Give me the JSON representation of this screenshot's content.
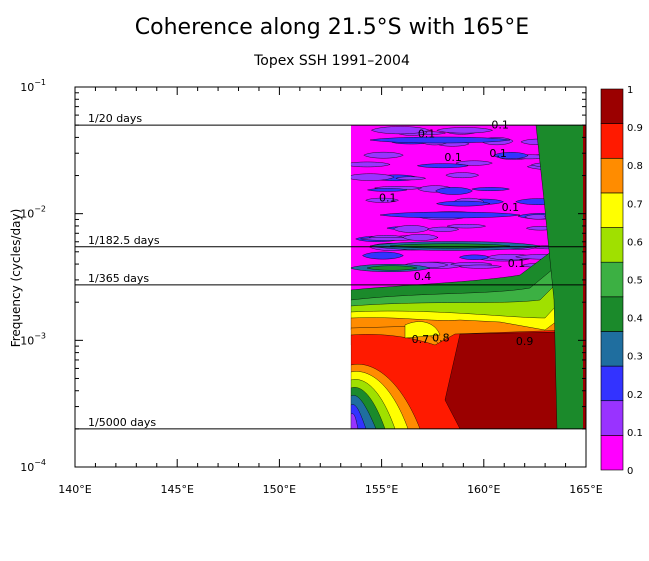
{
  "chart_data": {
    "type": "heatmap",
    "title": "Coherence along 21.5°S with 165°E",
    "subtitle": "Topex SSH 1991–2004",
    "ylabel": "Frequency (cycles/day)",
    "xlabel": "",
    "x_ticks": [
      "140°E",
      "145°E",
      "150°E",
      "155°E",
      "160°E",
      "165°E"
    ],
    "x_tick_values": [
      140,
      145,
      150,
      155,
      160,
      165
    ],
    "xlim": [
      140,
      165
    ],
    "y_scale": "log",
    "ylim": [
      0.0001,
      0.1
    ],
    "y_ticks": [
      {
        "base": "10",
        "exp": "−1",
        "value": 0.1
      },
      {
        "base": "10",
        "exp": "−2",
        "value": 0.01
      },
      {
        "base": "10",
        "exp": "−3",
        "value": 0.001
      },
      {
        "base": "10",
        "exp": "−4",
        "value": 0.0001
      }
    ],
    "reference_lines": [
      {
        "label": "1/20 days",
        "value": 0.05
      },
      {
        "label": "1/182.5 days",
        "value": 0.005479
      },
      {
        "label": "1/365 days",
        "value": 0.00274
      },
      {
        "label": "1/5000 days",
        "value": 0.0002
      }
    ],
    "data_extent": {
      "x": [
        153.5,
        165
      ],
      "y": [
        0.0002,
        0.05
      ]
    },
    "colorbar": {
      "levels": [
        0,
        0.1,
        0.2,
        0.3,
        0.4,
        0.5,
        0.6,
        0.7,
        0.8,
        0.9,
        1
      ],
      "labels": [
        "0",
        "0.1",
        "0.2",
        "0.3",
        "0.4",
        "0.5",
        "0.6",
        "0.7",
        "0.8",
        "0.9",
        "1"
      ],
      "colors": [
        "#ff00ff",
        "#9933ff",
        "#3333ff",
        "#1f6e9f",
        "#1b8a2b",
        "#3cb043",
        "#a0e000",
        "#ffff00",
        "#ff8c00",
        "#ff1a00",
        "#9b0000"
      ]
    },
    "contour_labels": [
      {
        "text": "0.1",
        "x": 157.2,
        "y": 0.04
      },
      {
        "text": "0.1",
        "x": 160.8,
        "y": 0.047
      },
      {
        "text": "0.1",
        "x": 158.5,
        "y": 0.026
      },
      {
        "text": "0.1",
        "x": 160.7,
        "y": 0.028
      },
      {
        "text": "0.1",
        "x": 155.3,
        "y": 0.0125
      },
      {
        "text": "0.1",
        "x": 161.3,
        "y": 0.0105
      },
      {
        "text": "0.1",
        "x": 161.6,
        "y": 0.0038
      },
      {
        "text": "0.4",
        "x": 157.0,
        "y": 0.003
      },
      {
        "text": "0.7",
        "x": 156.9,
        "y": 0.00095
      },
      {
        "text": "0.8",
        "x": 157.9,
        "y": 0.00098
      },
      {
        "text": "0.9",
        "x": 162.0,
        "y": 0.00092
      }
    ]
  }
}
